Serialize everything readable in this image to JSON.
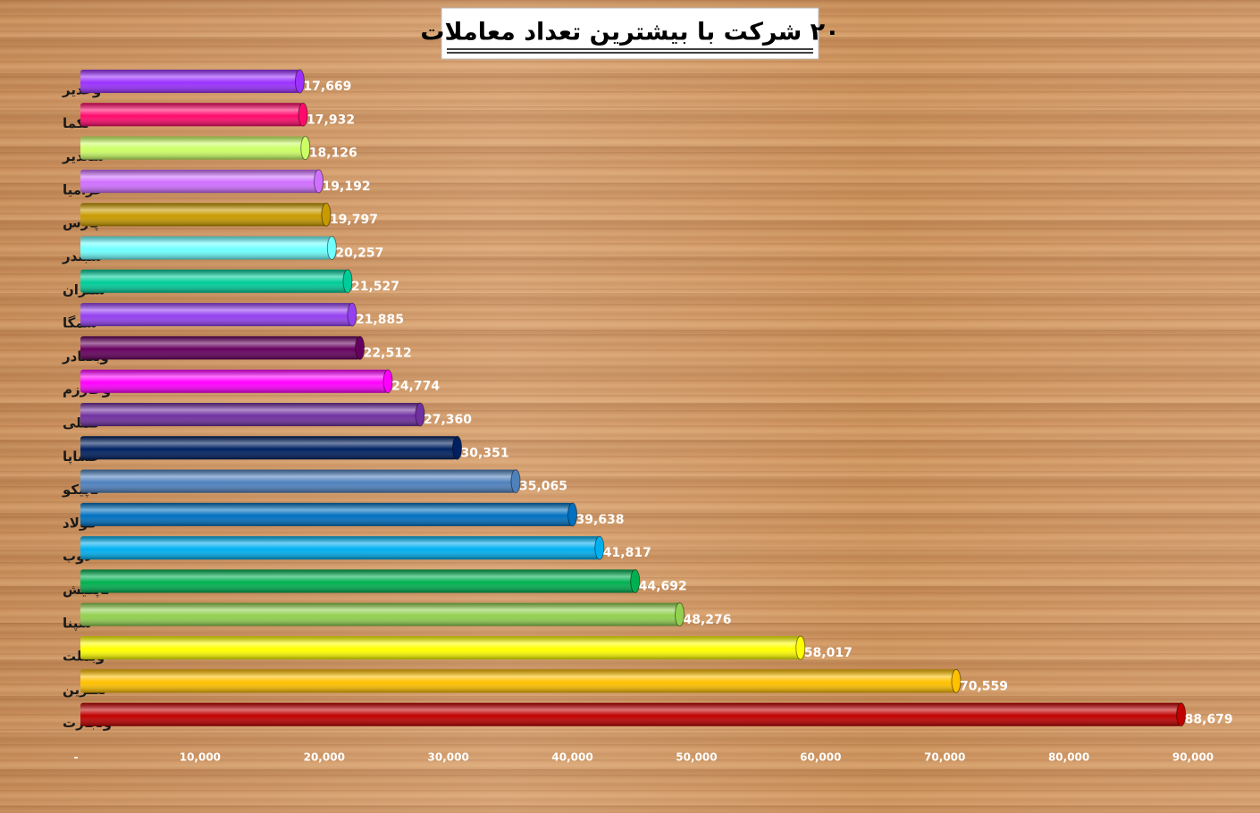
{
  "chart_data": {
    "type": "bar",
    "orientation": "horizontal",
    "title": "۲۰ شرکت با بیشترین تعداد معاملات",
    "categories": [
      "وغدیر",
      "لکما",
      "شغدیر",
      "خزامیا",
      "پارس",
      "شبندر",
      "شتران",
      "سمگا",
      "وبصادر",
      "وخارزم",
      "فملی",
      "خساپا",
      "تاپیکو",
      "فولاد",
      "ذوب",
      "تاپکیش",
      "شپنا",
      "وبملت",
      "نطرین",
      "وتجارت"
    ],
    "values": [
      17669,
      17932,
      18126,
      19192,
      19797,
      20257,
      21527,
      21885,
      22512,
      24774,
      27360,
      30351,
      35065,
      39638,
      41817,
      44692,
      48276,
      58017,
      70559,
      88679
    ],
    "value_labels": [
      "17,669",
      "17,932",
      "18,126",
      "19,192",
      "19,797",
      "20,257",
      "21,527",
      "21,885",
      "22,512",
      "24,774",
      "27,360",
      "30,351",
      "35,065",
      "39,638",
      "41,817",
      "44,692",
      "48,276",
      "58,017",
      "70,559",
      "88,679"
    ],
    "colors": [
      "#9b30ff",
      "#ff0a6c",
      "#ccff66",
      "#d070ff",
      "#c99a00",
      "#6fffff",
      "#00cc99",
      "#9440f0",
      "#66005e",
      "#ff00ff",
      "#7030a0",
      "#002060",
      "#4f81bd",
      "#0070c0",
      "#00b0f0",
      "#00b050",
      "#92d050",
      "#ffff00",
      "#ffc000",
      "#c00000"
    ],
    "xlim": [
      0,
      90000
    ],
    "xticks": [
      {
        "value": 0,
        "label": "-"
      },
      {
        "value": 10000,
        "label": "10,000"
      },
      {
        "value": 20000,
        "label": "20,000"
      },
      {
        "value": 30000,
        "label": "30,000"
      },
      {
        "value": 40000,
        "label": "40,000"
      },
      {
        "value": 50000,
        "label": "50,000"
      },
      {
        "value": 60000,
        "label": "60,000"
      },
      {
        "value": 70000,
        "label": "70,000"
      },
      {
        "value": 80000,
        "label": "80,000"
      },
      {
        "value": 90000,
        "label": "90,000"
      }
    ],
    "grid": false
  }
}
